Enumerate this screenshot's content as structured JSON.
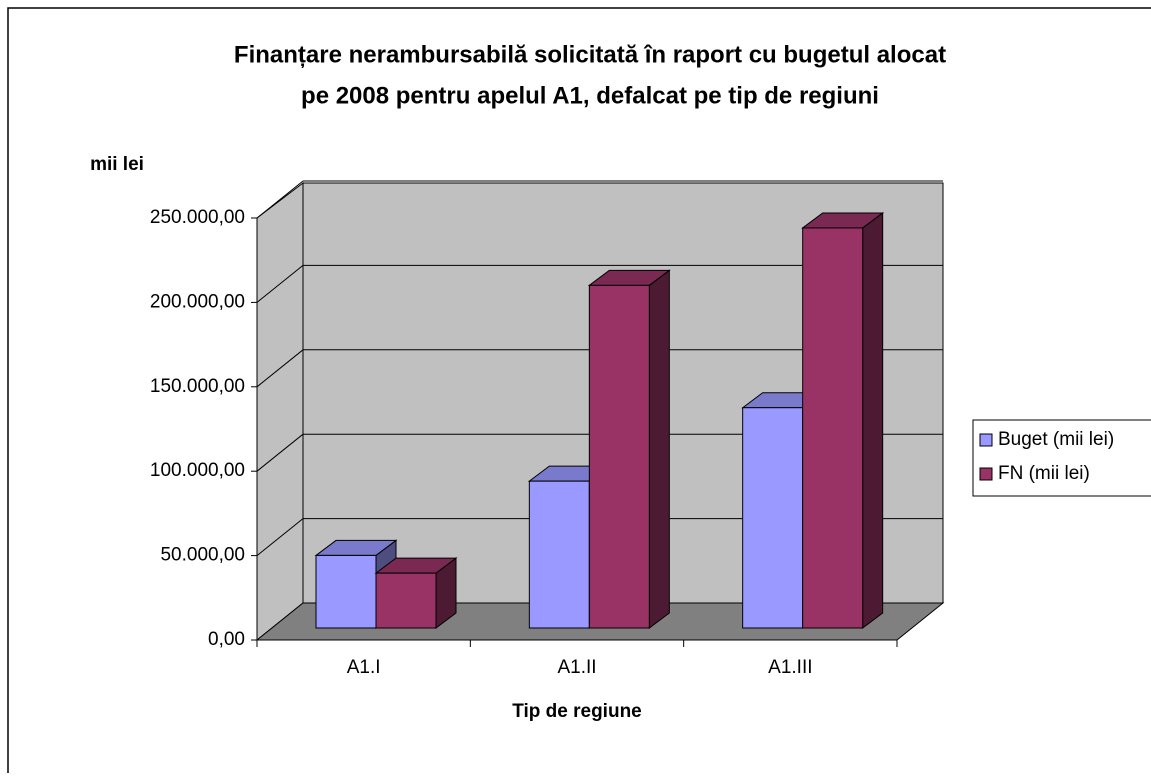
{
  "chart_data": {
    "type": "bar3d",
    "title": "Finanțare nerambursabilă solicitată în raport cu bugetul alocat",
    "subtitle": "pe 2008 pentru apelul A1, defalcat pe tip de regiuni",
    "y_label": "mii lei",
    "x_label": "Tip de regiune",
    "categories": [
      "A1.I",
      "A1.II",
      "A1.III"
    ],
    "series": [
      {
        "name": "Buget (mii lei)",
        "color": "#9999ff",
        "values": [
          43000,
          87000,
          130500
        ]
      },
      {
        "name": "FN (mii lei)",
        "color": "#993366",
        "values": [
          32500,
          203000,
          237000
        ]
      }
    ],
    "ylim": [
      0,
      250000
    ],
    "yticks": [
      {
        "value": 0,
        "label": "0,00"
      },
      {
        "value": 50000,
        "label": "50.000,00"
      },
      {
        "value": 100000,
        "label": "100.000,00"
      },
      {
        "value": 150000,
        "label": "150.000,00"
      },
      {
        "value": 200000,
        "label": "200.000,00"
      },
      {
        "value": 250000,
        "label": "250.000,00"
      }
    ],
    "grid": true,
    "legend": "right"
  }
}
